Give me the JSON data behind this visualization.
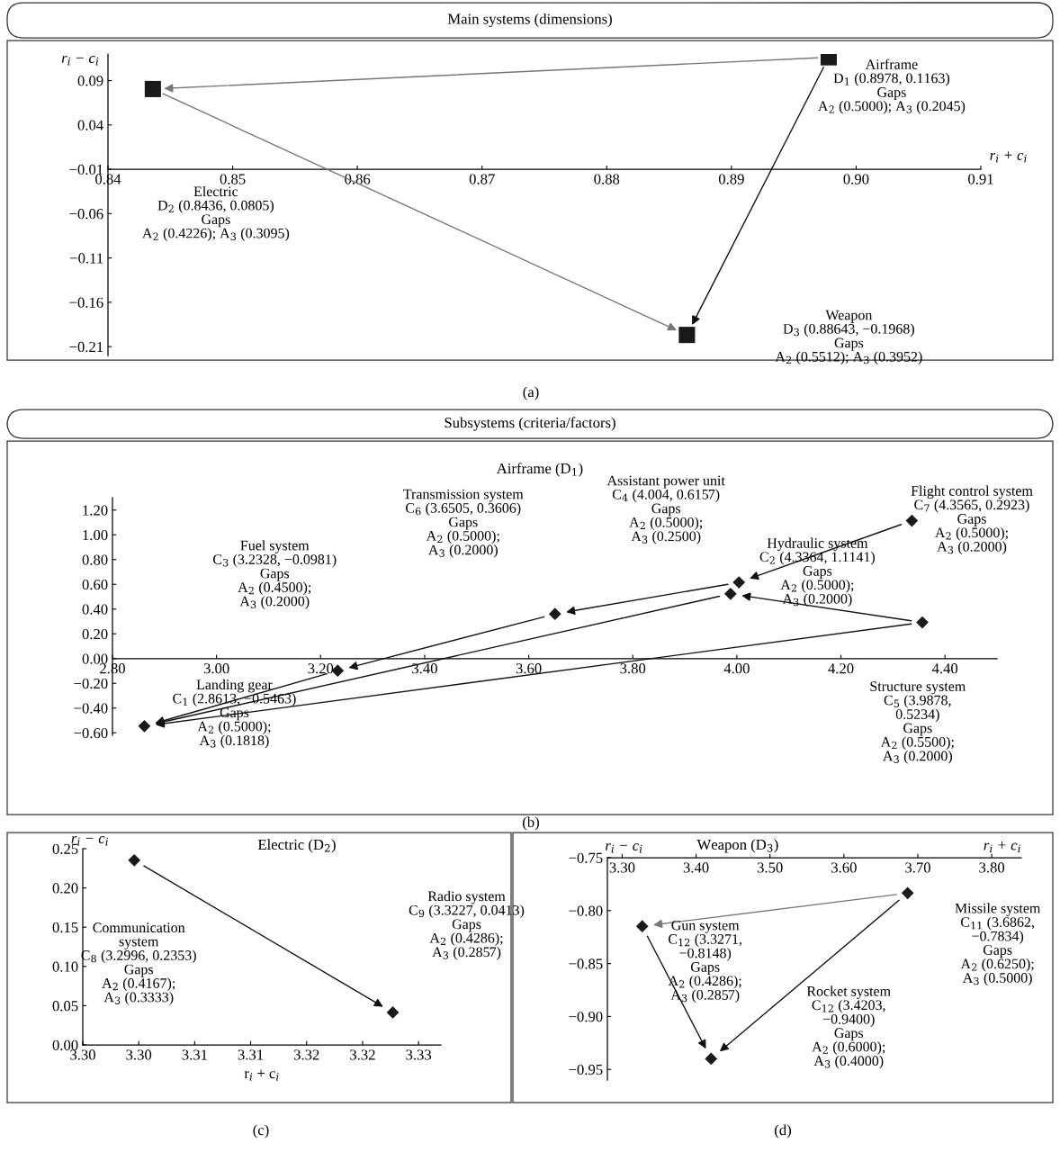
{
  "chart_data": [
    {
      "type": "scatter",
      "title": "Main systems (dimensions)",
      "xlabel": "r$_{i}$ + c$_{i}$",
      "ylabel": "r$_{i}$ − c$_{i}$",
      "marker": "square",
      "x": [
        0.8978,
        0.8436,
        0.88643
      ],
      "series": [
        {
          "color": "#1a1a1a",
          "values": [
            0.1163,
            0.0805,
            -0.1968
          ]
        }
      ],
      "xlim": [
        0.84,
        0.91
      ],
      "ylim": [
        -0.22,
        0.12
      ],
      "xticks": [
        {
          "value": 0.84,
          "label": "0.84"
        },
        {
          "value": 0.85,
          "label": "0.85"
        },
        {
          "value": 0.86,
          "label": "0.86"
        },
        {
          "value": 0.87,
          "label": "0.87"
        },
        {
          "value": 0.88,
          "label": "0.88"
        },
        {
          "value": 0.89,
          "label": "0.89"
        },
        {
          "value": 0.9,
          "label": "0.90"
        },
        {
          "value": 0.91,
          "label": "0.91"
        }
      ],
      "yticks": [
        {
          "value": -0.21,
          "label": "−0.21"
        },
        {
          "value": -0.16,
          "label": "−0.16"
        },
        {
          "value": -0.11,
          "label": "−0.11"
        },
        {
          "value": -0.06,
          "label": "−0.06"
        },
        {
          "value": -0.01,
          "label": "−0.01"
        },
        {
          "value": 0.04,
          "label": "0.04"
        },
        {
          "value": 0.09,
          "label": "0.09"
        }
      ],
      "annotations": [
        "Airframe\nD$_{1}$ (0.8978, 0.1163)\nGaps\nA$_{2}$ (0.5000); A$_{3}$ (0.2045)",
        "Electric\nD$_{2}$ (0.8436, 0.0805)\nGaps\nA$_{2}$ (0.4226); A$_{3}$ (0.3095)",
        "Weapon\nD$_{3}$ (0.88643, −0.1968)\nGaps\nA$_{2}$ (0.5512); A$_{3}$ (0.3952)",
        "(a)"
      ]
    },
    {
      "type": "scatter",
      "title": "Subsystems (criteria/factors)",
      "subtitle": "Airframe (D$_{1}$)",
      "marker": "diamond",
      "x": [
        2.8613,
        4.3364,
        3.2328,
        4.004,
        3.9878,
        3.6505,
        4.3565
      ],
      "series": [
        {
          "color": "#1a1a1a",
          "values": [
            -0.5463,
            1.1141,
            -0.0981,
            0.6157,
            0.5234,
            0.3606,
            0.2923
          ]
        }
      ],
      "xlim": [
        2.8,
        4.5
      ],
      "ylim": [
        -0.62,
        1.3
      ],
      "xticks": [
        {
          "value": 2.8,
          "label": "2.80"
        },
        {
          "value": 3.0,
          "label": "3.00"
        },
        {
          "value": 3.2,
          "label": "3.20"
        },
        {
          "value": 3.4,
          "label": "3.40"
        },
        {
          "value": 3.6,
          "label": "3.60"
        },
        {
          "value": 3.8,
          "label": "3.80"
        },
        {
          "value": 4.0,
          "label": "4.00"
        },
        {
          "value": 4.2,
          "label": "4.20"
        },
        {
          "value": 4.4,
          "label": "4.40"
        }
      ],
      "yticks": [
        {
          "value": -0.6,
          "label": "−0.60"
        },
        {
          "value": -0.4,
          "label": "−0.40"
        },
        {
          "value": -0.2,
          "label": "−0.20"
        },
        {
          "value": 0.0,
          "label": "0.00"
        },
        {
          "value": 0.2,
          "label": "0.20"
        },
        {
          "value": 0.4,
          "label": "0.40"
        },
        {
          "value": 0.6,
          "label": "0.60"
        },
        {
          "value": 0.8,
          "label": "0.80"
        },
        {
          "value": 1.0,
          "label": "1.00"
        },
        {
          "value": 1.2,
          "label": "1.20"
        }
      ],
      "annotations": [
        "Landing gear\nC$_{1}$ (2.8613, −0.5463)\nGaps\nA$_{2}$ (0.5000);\nA$_{3}$ (0.1818)",
        "Hydraulic system\nC$_{2}$ (4.3364, 1.1141)\nGaps\nA$_{2}$ (0.5000);\nA$_{3}$ (0.2000)",
        "Fuel system\nC$_{3}$ (3.2328, −0.0981)\nGaps\nA$_{2}$ (0.4500);\nA$_{3}$ (0.2000)",
        "Assistant power unit\nC$_{4}$ (4.004, 0.6157)\nGaps\nA$_{2}$ (0.5000);\nA$_{3}$ (0.2500)",
        "Structure system\nC$_{5}$ (3.9878,\n0.5234)\nGaps\nA$_{2}$ (0.5500);\nA$_{3}$ (0.2000)",
        "Transmission system\nC$_{6}$ (3.6505, 0.3606)\nGaps\nA$_{2}$ (0.5000);\nA$_{3}$ (0.2000)",
        "Flight control system\nC$_{7}$ (4.3565, 0.2923)\nGaps\nA$_{2}$ (0.5000);\nA$_{3}$ (0.2000)",
        "(b)"
      ]
    },
    {
      "type": "scatter",
      "title": "Electric (D$_{2}$)",
      "xlabel": "r$_{i}$ + c$_{i}$",
      "ylabel": "r$_{i}$ − c$_{i}$",
      "marker": "diamond",
      "x": [
        3.2996,
        3.3227
      ],
      "series": [
        {
          "color": "#1a1a1a",
          "values": [
            0.2353,
            0.0413
          ]
        }
      ],
      "xlim": [
        3.295,
        3.327
      ],
      "ylim": [
        0.0,
        0.25
      ],
      "xticks": [
        {
          "value": 3.295,
          "label": "3.30"
        },
        {
          "value": 3.3,
          "label": "3.30"
        },
        {
          "value": 3.305,
          "label": "3.31"
        },
        {
          "value": 3.31,
          "label": "3.31"
        },
        {
          "value": 3.315,
          "label": "3.32"
        },
        {
          "value": 3.32,
          "label": "3.32"
        },
        {
          "value": 3.325,
          "label": "3.33"
        }
      ],
      "yticks": [
        {
          "value": 0.0,
          "label": "0.00"
        },
        {
          "value": 0.05,
          "label": "0.05"
        },
        {
          "value": 0.1,
          "label": "0.10"
        },
        {
          "value": 0.15,
          "label": "0.15"
        },
        {
          "value": 0.2,
          "label": "0.20"
        },
        {
          "value": 0.25,
          "label": "0.25"
        }
      ],
      "annotations": [
        "Communication\nsystem\nC$_{8}$ (3.2996, 0.2353)\nGaps\nA$_{2}$ (0.4167);\nA$_{3}$ (0.3333)",
        "Radio system\nC$_{9}$ (3.3227, 0.0413)\nGaps\nA$_{2}$ (0.4286);\nA$_{3}$ (0.2857)",
        "(c)"
      ]
    },
    {
      "type": "scatter",
      "title": "Weapon (D$_{3}$)",
      "xlabel": "r$_{i}$ + c$_{i}$",
      "ylabel": "r$_{i}$ − c$_{i}$",
      "marker": "diamond",
      "x": [
        3.6862,
        3.3271,
        3.4203
      ],
      "series": [
        {
          "color": "#1a1a1a",
          "values": [
            -0.7834,
            -0.8148,
            -0.94
          ]
        }
      ],
      "xlim": [
        3.28,
        3.84
      ],
      "ylim": [
        -0.96,
        -0.75
      ],
      "xticks": [
        {
          "value": 3.3,
          "label": "3.30"
        },
        {
          "value": 3.4,
          "label": "3.40"
        },
        {
          "value": 3.5,
          "label": "3.50"
        },
        {
          "value": 3.6,
          "label": "3.60"
        },
        {
          "value": 3.7,
          "label": "3.70"
        },
        {
          "value": 3.8,
          "label": "3.80"
        }
      ],
      "yticks": [
        {
          "value": -0.95,
          "label": "−0.95"
        },
        {
          "value": -0.9,
          "label": "−0.90"
        },
        {
          "value": -0.85,
          "label": "−0.85"
        },
        {
          "value": -0.8,
          "label": "−0.80"
        },
        {
          "value": -0.75,
          "label": "−0.75"
        }
      ],
      "annotations": [
        "Missile system\nC$_{11}$ (3.6862,\n−0.7834)\nGaps\nA$_{2}$ (0.6250);\nA$_{3}$ (0.5000)",
        "Gun system\nC$_{12}$ (3.3271,\n−0.8148)\nGaps\nA$_{2}$ (0.4286);\nA$_{3}$ (0.2857)",
        "Rocket system\nC$_{12}$ (3.4203,\n−0.9400)\nGaps\nA$_{2}$ (0.6000);\nA$_{3}$ (0.4000)",
        "(d)"
      ]
    }
  ]
}
